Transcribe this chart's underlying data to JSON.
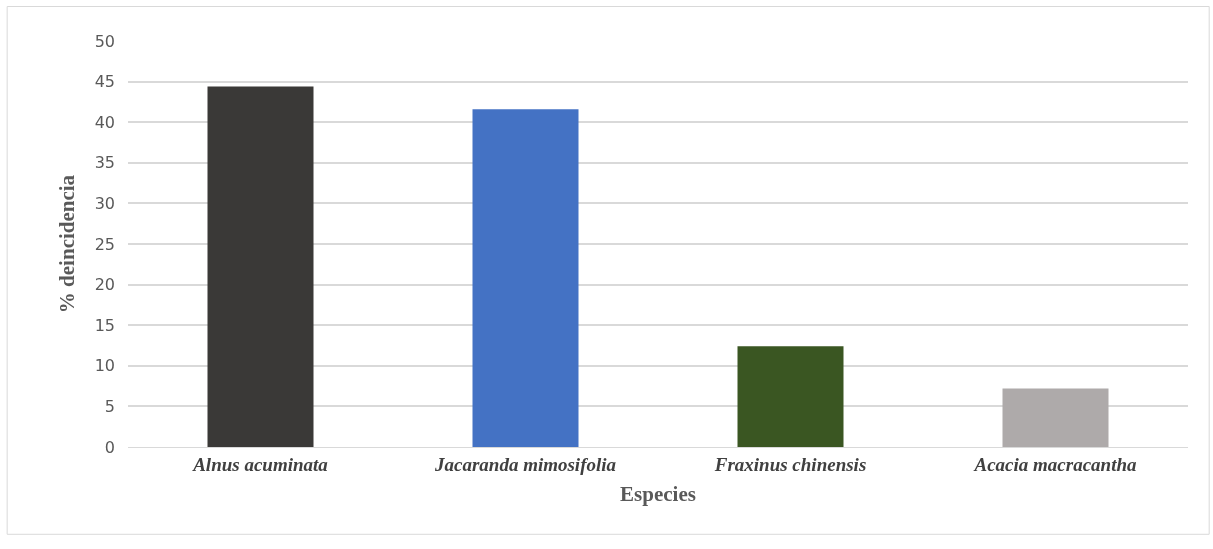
{
  "chart_data": {
    "type": "bar",
    "xlabel": "Especies",
    "ylabel": "% deincidencia",
    "categories": [
      "Alnus acuminata",
      "Jacaranda mimosifolia",
      "Fraxinus chinensis",
      "Acacia macracantha"
    ],
    "values": [
      44.4,
      41.6,
      12.4,
      7.2
    ],
    "colors": [
      "#3a3937",
      "#4472c4",
      "#3a5622",
      "#aeaaaa"
    ],
    "ylim": [
      0,
      50
    ],
    "yticks": [
      0,
      5,
      10,
      15,
      20,
      25,
      30,
      35,
      40,
      45,
      50
    ],
    "grid": "y"
  }
}
